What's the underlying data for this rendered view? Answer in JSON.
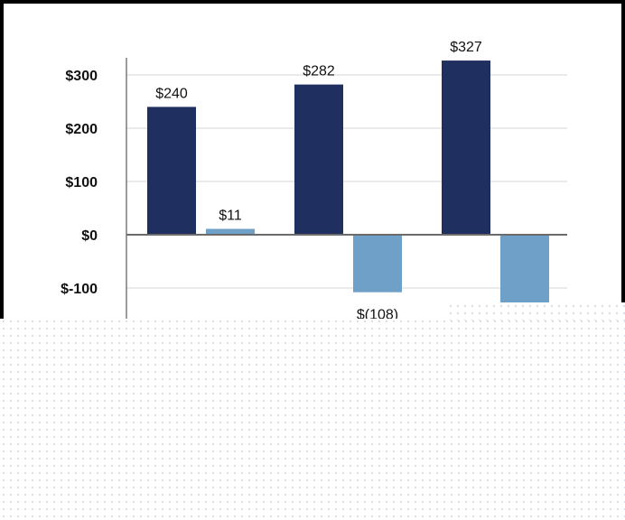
{
  "chart_data": {
    "type": "bar",
    "categories": [
      "",
      "",
      ""
    ],
    "series": [
      {
        "color": "#1f2f5f",
        "values": [
          240,
          282,
          327
        ],
        "labels": [
          "$240",
          "$282",
          "$327"
        ]
      },
      {
        "color": "#6fa1c8",
        "values": [
          11,
          -108,
          -130
        ],
        "labels": [
          "$11",
          "$(108)",
          ""
        ]
      }
    ],
    "y_ticks": [
      {
        "value": 300,
        "label": "$300"
      },
      {
        "value": 200,
        "label": "$200"
      },
      {
        "value": 100,
        "label": "$100"
      },
      {
        "value": 0,
        "label": "$0"
      },
      {
        "value": -100,
        "label": "$-100"
      }
    ],
    "ylim": [
      -160,
      330
    ],
    "grid": true,
    "title": "",
    "xlabel": "",
    "ylabel": ""
  }
}
